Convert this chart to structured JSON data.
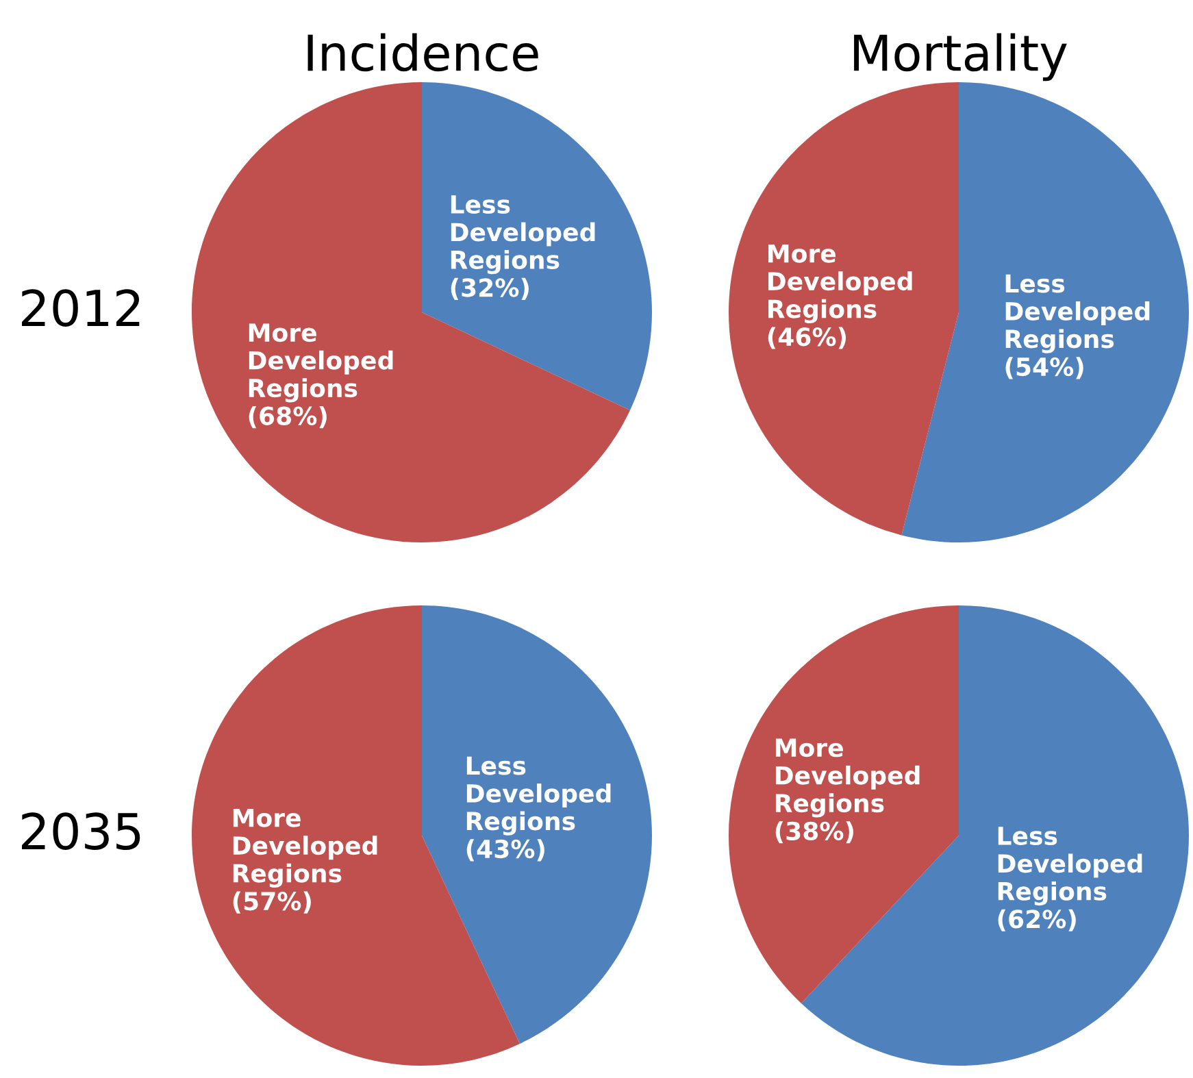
{
  "chart_data": [
    {
      "type": "pie",
      "title": "Incidence",
      "ylabel": "2012",
      "categories": [
        "Less Developed Regions",
        "More Developed Regions"
      ],
      "values": [
        32,
        68
      ],
      "colors": [
        "#4f81bd",
        "#c0504d"
      ],
      "value_labels": [
        "(32%)",
        "(68%)"
      ]
    },
    {
      "type": "pie",
      "title": "Mortality",
      "categories": [
        "Less Developed Regions",
        "More Developed Regions"
      ],
      "values": [
        54,
        46
      ],
      "colors": [
        "#4f81bd",
        "#c0504d"
      ],
      "value_labels": [
        "(54%)",
        "(46%)"
      ]
    },
    {
      "type": "pie",
      "ylabel": "2035",
      "categories": [
        "Less Developed Regions",
        "More Developed Regions"
      ],
      "values": [
        43,
        57
      ],
      "colors": [
        "#4f81bd",
        "#c0504d"
      ],
      "value_labels": [
        "(43%)",
        "(57%)"
      ]
    },
    {
      "type": "pie",
      "categories": [
        "Less Developed Regions",
        "More Developed Regions"
      ],
      "values": [
        62,
        38
      ],
      "colors": [
        "#4f81bd",
        "#c0504d"
      ],
      "value_labels": [
        "(62%)",
        "(38%)"
      ]
    }
  ]
}
